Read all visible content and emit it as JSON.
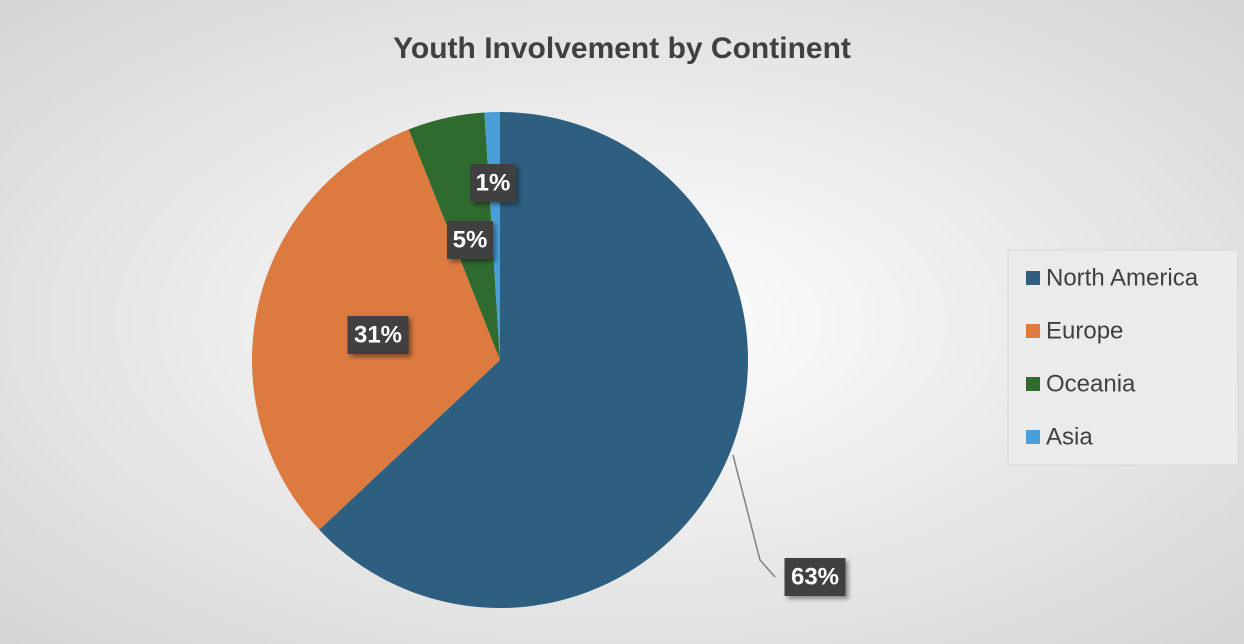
{
  "chart_data": {
    "type": "pie",
    "title": "Youth Involvement by Continent",
    "categories": [
      "North America",
      "Europe",
      "Oceania",
      "Asia"
    ],
    "values": [
      63,
      31,
      5,
      1
    ],
    "value_labels": [
      "63%",
      "31%",
      "5%",
      "1%"
    ],
    "colors": [
      "#2e5f80",
      "#dc7a40",
      "#2f6b2f",
      "#4a9fd8"
    ],
    "legend": "right"
  }
}
